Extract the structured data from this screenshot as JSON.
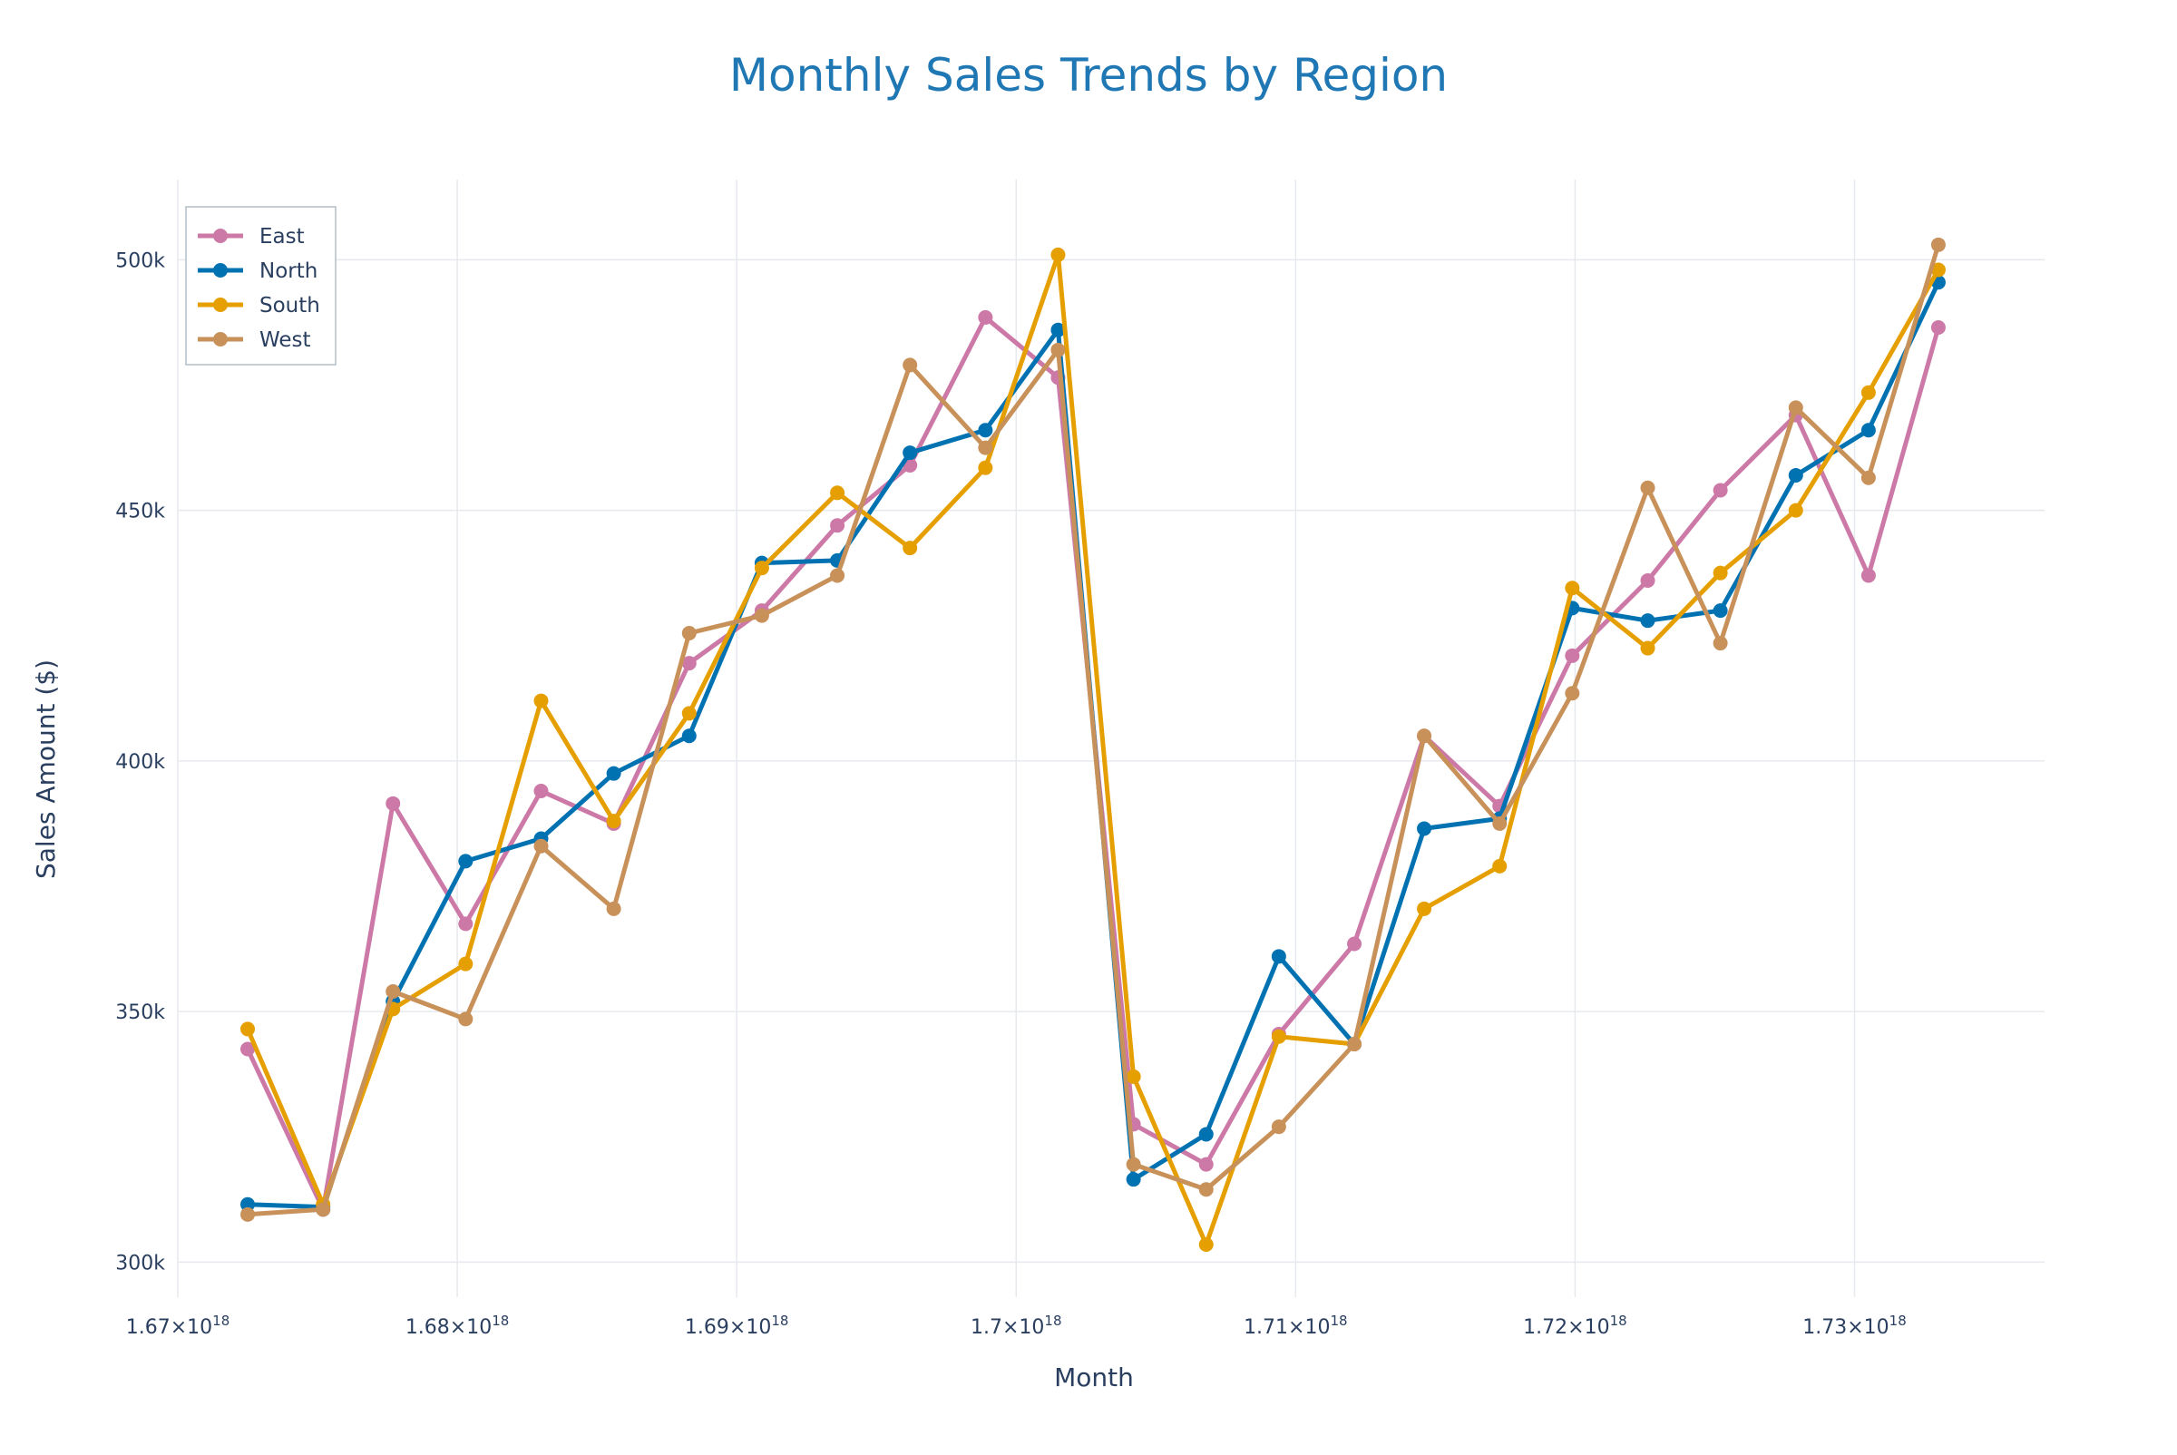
{
  "chart_data": {
    "type": "line",
    "title": "Monthly Sales Trends by Region",
    "xlabel": "Month",
    "ylabel": "Sales Amount ($)",
    "xlim": [
      1.67e+18,
      1.7368e+18
    ],
    "ylim": [
      293000,
      516000
    ],
    "x_ticks": [
      1.67e+18,
      1.68e+18,
      1.69e+18,
      1.7e+18,
      1.71e+18,
      1.72e+18,
      1.73e+18
    ],
    "x_tick_labels": [
      [
        "1.67",
        "×10",
        "18"
      ],
      [
        "1.68",
        "×10",
        "18"
      ],
      [
        "1.69",
        "×10",
        "18"
      ],
      [
        "1.7",
        "×10",
        "18"
      ],
      [
        "1.71",
        "×10",
        "18"
      ],
      [
        "1.72",
        "×10",
        "18"
      ],
      [
        "1.73",
        "×10",
        "18"
      ]
    ],
    "y_ticks": [
      300000,
      350000,
      400000,
      450000,
      500000
    ],
    "y_tick_labels": [
      "300k",
      "350k",
      "400k",
      "450k",
      "500k"
    ],
    "grid": true,
    "legend_position": "top-left",
    "x": [
      1.6725e+18,
      1.6752e+18,
      1.6777e+18,
      1.6803e+18,
      1.683e+18,
      1.6856e+18,
      1.6883e+18,
      1.6909e+18,
      1.6936e+18,
      1.6962e+18,
      1.6989e+18,
      1.7015e+18,
      1.7042e+18,
      1.7068e+18,
      1.7094e+18,
      1.7121e+18,
      1.7146e+18,
      1.7173e+18,
      1.7199e+18,
      1.7226e+18,
      1.7252e+18,
      1.7279e+18,
      1.7305e+18,
      1.733e+18
    ],
    "series": [
      {
        "name": "East",
        "color": "#cc79a7",
        "values": [
          342500,
          310500,
          391500,
          367500,
          394000,
          387500,
          419500,
          430000,
          447000,
          459000,
          488500,
          476500,
          327500,
          319500,
          345500,
          363500,
          405000,
          391000,
          421000,
          436000,
          454000,
          469000,
          437000,
          486500
        ]
      },
      {
        "name": "North",
        "color": "#0072b2",
        "values": [
          311500,
          311000,
          352000,
          380000,
          384500,
          397500,
          405000,
          439500,
          440000,
          461500,
          466000,
          486000,
          316500,
          325500,
          361000,
          343500,
          386500,
          388500,
          430500,
          428000,
          430000,
          457000,
          466000,
          495500
        ]
      },
      {
        "name": "South",
        "color": "#e69f00",
        "values": [
          346500,
          311500,
          350500,
          359500,
          412000,
          388000,
          409500,
          438500,
          453500,
          442500,
          458500,
          501000,
          337000,
          303500,
          345000,
          343500,
          370500,
          379000,
          434500,
          422500,
          437500,
          450000,
          473500,
          498000
        ]
      },
      {
        "name": "West",
        "color": "#c8915a",
        "values": [
          309500,
          310500,
          354000,
          348500,
          383000,
          370500,
          425500,
          429000,
          437000,
          479000,
          462500,
          482000,
          319500,
          314500,
          327000,
          343500,
          405000,
          387500,
          413500,
          454500,
          423500,
          470500,
          456500,
          503000
        ]
      }
    ]
  }
}
